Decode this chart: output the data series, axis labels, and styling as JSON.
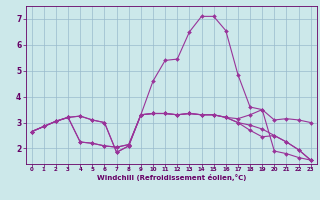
{
  "bg_color": "#cce8ea",
  "line_color": "#993399",
  "grid_color": "#99bbcc",
  "xlabel": "Windchill (Refroidissement éolien,°C)",
  "xlabel_color": "#660066",
  "tick_color": "#660066",
  "xlim": [
    -0.5,
    23.5
  ],
  "ylim": [
    1.4,
    7.5
  ],
  "yticks": [
    2,
    3,
    4,
    5,
    6,
    7
  ],
  "xticks": [
    0,
    1,
    2,
    3,
    4,
    5,
    6,
    7,
    8,
    9,
    10,
    11,
    12,
    13,
    14,
    15,
    16,
    17,
    18,
    19,
    20,
    21,
    22,
    23
  ],
  "series": [
    [
      2.65,
      2.85,
      3.05,
      3.2,
      3.25,
      3.1,
      3.0,
      1.85,
      2.1,
      3.3,
      4.6,
      5.4,
      5.45,
      6.5,
      7.1,
      7.1,
      6.55,
      4.85,
      3.6,
      3.5,
      1.9,
      1.8,
      1.65,
      1.55
    ],
    [
      2.65,
      2.85,
      3.05,
      3.2,
      2.25,
      2.2,
      2.1,
      2.05,
      2.15,
      3.3,
      3.35,
      3.35,
      3.3,
      3.35,
      3.3,
      3.3,
      3.2,
      3.15,
      3.3,
      3.5,
      3.1,
      3.15,
      3.1,
      3.0
    ],
    [
      2.65,
      2.85,
      3.05,
      3.2,
      2.25,
      2.2,
      2.1,
      2.05,
      2.15,
      3.3,
      3.35,
      3.35,
      3.3,
      3.35,
      3.3,
      3.3,
      3.2,
      3.0,
      2.9,
      2.75,
      2.5,
      2.25,
      1.95,
      1.55
    ],
    [
      2.65,
      2.85,
      3.05,
      3.2,
      3.25,
      3.1,
      3.0,
      1.85,
      2.1,
      3.3,
      3.35,
      3.35,
      3.3,
      3.35,
      3.3,
      3.3,
      3.2,
      3.0,
      2.7,
      2.45,
      2.5,
      2.25,
      1.95,
      1.55
    ]
  ],
  "marker": "D",
  "markersize": 2.0,
  "linewidth": 0.8,
  "figsize": [
    3.2,
    2.0
  ],
  "dpi": 100
}
